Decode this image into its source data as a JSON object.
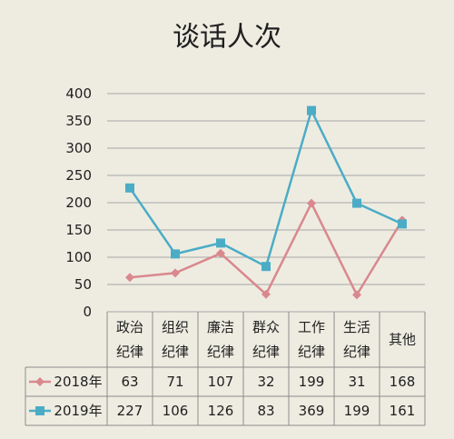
{
  "chart_data": {
    "type": "line",
    "title": "谈话人次",
    "categories": [
      [
        "政治",
        "纪律"
      ],
      [
        "组织",
        "纪律"
      ],
      [
        "廉洁",
        "纪律"
      ],
      [
        "群众",
        "纪律"
      ],
      [
        "工作",
        "纪律"
      ],
      [
        "生活",
        "纪律"
      ],
      [
        "其他"
      ]
    ],
    "series": [
      {
        "name": "2018年",
        "color": "#d9888e",
        "marker": "diamond",
        "values": [
          63,
          71,
          107,
          32,
          199,
          31,
          168
        ]
      },
      {
        "name": "2019年",
        "color": "#4bacc6",
        "marker": "square",
        "values": [
          227,
          106,
          126,
          83,
          369,
          199,
          161
        ]
      }
    ],
    "ylim": [
      0,
      400
    ],
    "yticks": [
      0,
      50,
      100,
      150,
      200,
      250,
      300,
      350,
      400
    ],
    "grid": true,
    "legend": "data-table-left",
    "xlabel": "",
    "ylabel": ""
  }
}
